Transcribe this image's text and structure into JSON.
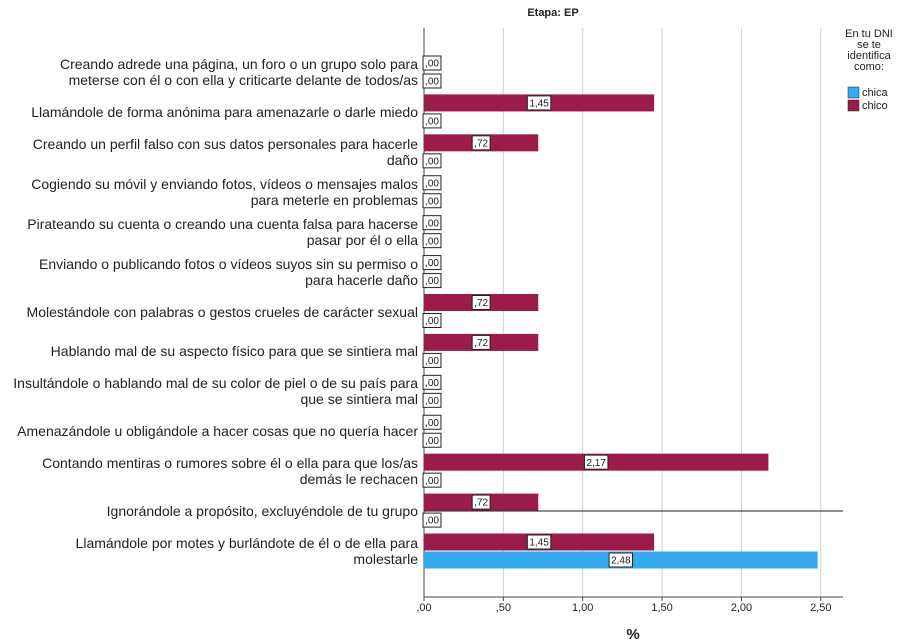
{
  "chart_data": {
    "type": "bar",
    "title": "Etapa: EP",
    "x_label": "%",
    "legend_title": "En tu DNI se te identifica como:",
    "categories": [
      "Creando adrede una página, un foro o un grupo solo para meterse con él o con ella y criticarte delante de todos/as",
      "Llamándole de forma anónima para amenazarle o darle miedo",
      "Creando un perfil falso con sus datos personales para hacerle daño",
      "Cogiendo su móvil y enviando fotos, vídeos o mensajes malos para meterle en problemas",
      "Pirateando su cuenta o creando una cuenta falsa para hacerse pasar por él o ella",
      "Enviando o publicando fotos o vídeos suyos sin su permiso o para hacerle daño",
      "Molestándole con palabras o gestos crueles de carácter sexual",
      "Hablando mal de su aspecto físico para que se sintiera mal",
      "Insultándole o hablando mal de su color de piel o de su país para que se sintiera mal",
      "Amenazándole u obligándole a hacer cosas que no quería hacer",
      "Contando mentiras o rumores sobre él o ella para que los/as demás le rechacen",
      "Ignorándole a propósito, excluyéndole de tu grupo",
      "Llamándole por motes y burlándote de él o de ella para molestarle"
    ],
    "series": [
      {
        "name": "chico",
        "color": "#9b1b4b",
        "values": [
          0,
          1.45,
          0.72,
          0,
          0,
          0,
          0.72,
          0.72,
          0,
          0,
          2.17,
          0.72,
          1.45
        ],
        "value_labels": [
          ",00",
          "1,45",
          ",72",
          ",00",
          ",00",
          ",00",
          ",72",
          ",72",
          ",00",
          ",00",
          "2,17",
          ",72",
          "1,45"
        ]
      },
      {
        "name": "chica",
        "color": "#35aaee",
        "values": [
          0,
          0,
          0,
          0,
          0,
          0,
          0,
          0,
          0,
          0,
          0,
          0,
          2.48
        ],
        "value_labels": [
          ",00",
          ",00",
          ",00",
          ",00",
          ",00",
          ",00",
          ",00",
          ",00",
          ",00",
          ",00",
          ",00",
          ",00",
          "2,48"
        ]
      }
    ],
    "xlim": [
      0,
      2.64
    ],
    "xticks": [
      {
        "value": 0,
        "label": ",00"
      },
      {
        "value": 0.5,
        "label": ",50"
      },
      {
        "value": 1,
        "label": "1,00"
      },
      {
        "value": 1.5,
        "label": "1,50"
      },
      {
        "value": 2,
        "label": "2,00"
      },
      {
        "value": 2.5,
        "label": "2,50"
      }
    ],
    "grid": true
  }
}
